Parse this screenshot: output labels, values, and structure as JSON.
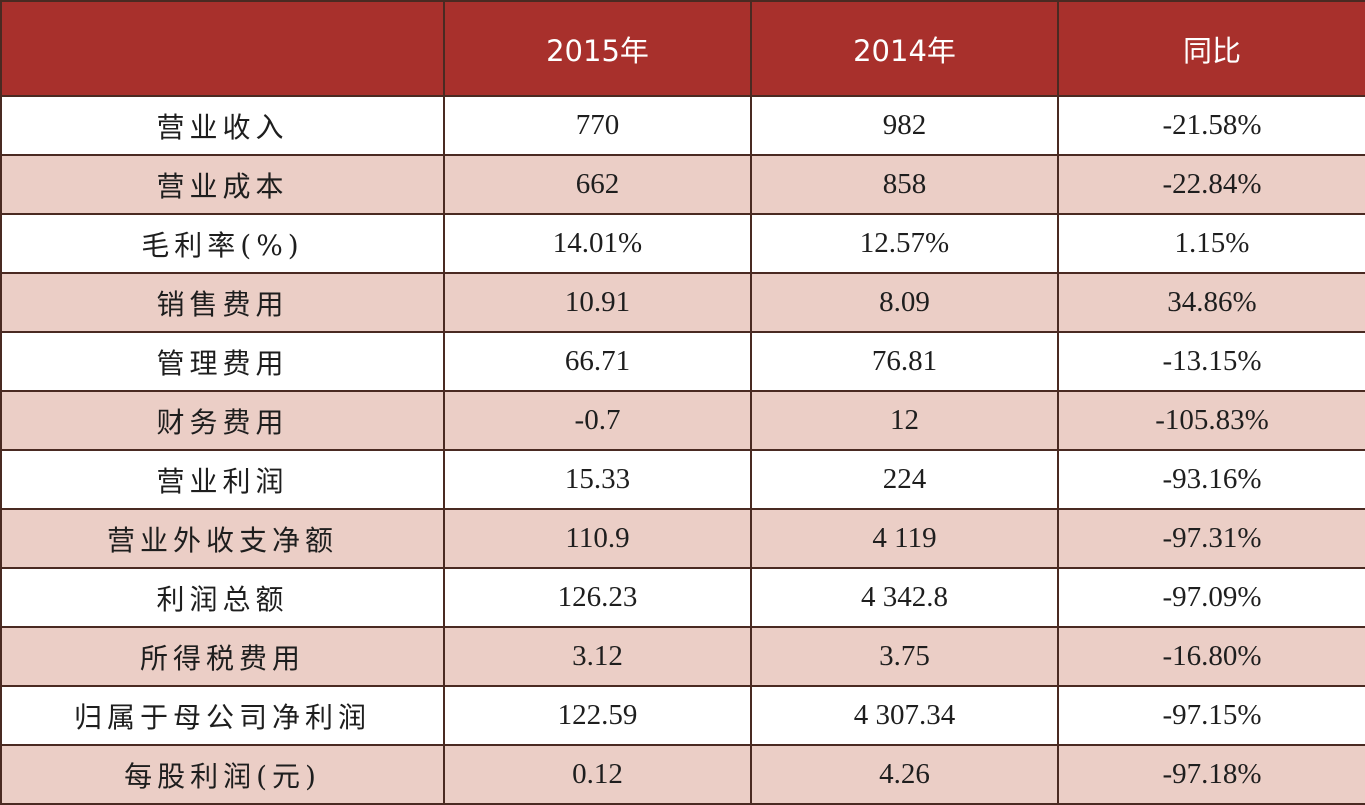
{
  "table": {
    "headers": [
      "",
      "2015年",
      "2014年",
      "同比"
    ],
    "rows": [
      {
        "label": "营业收入",
        "y2015": "770",
        "y2014": "982",
        "yoy": "-21.58%"
      },
      {
        "label": "营业成本",
        "y2015": "662",
        "y2014": "858",
        "yoy": "-22.84%"
      },
      {
        "label": "毛利率(%)",
        "y2015": "14.01%",
        "y2014": "12.57%",
        "yoy": "1.15%"
      },
      {
        "label": "销售费用",
        "y2015": "10.91",
        "y2014": "8.09",
        "yoy": "34.86%"
      },
      {
        "label": "管理费用",
        "y2015": "66.71",
        "y2014": "76.81",
        "yoy": "-13.15%"
      },
      {
        "label": "财务费用",
        "y2015": "-0.7",
        "y2014": "12",
        "yoy": "-105.83%"
      },
      {
        "label": "营业利润",
        "y2015": "15.33",
        "y2014": "224",
        "yoy": "-93.16%"
      },
      {
        "label": "营业外收支净额",
        "y2015": "110.9",
        "y2014": "4 119",
        "yoy": "-97.31%"
      },
      {
        "label": "利润总额",
        "y2015": "126.23",
        "y2014": "4 342.8",
        "yoy": "-97.09%"
      },
      {
        "label": "所得税费用",
        "y2015": "3.12",
        "y2014": "3.75",
        "yoy": "-16.80%"
      },
      {
        "label": "归属于母公司净利润",
        "y2015": "122.59",
        "y2014": "4 307.34",
        "yoy": "-97.15%"
      },
      {
        "label": "每股利润(元)",
        "y2015": "0.12",
        "y2014": "4.26",
        "yoy": "-97.18%"
      }
    ]
  },
  "colors": {
    "header_bg": "#a8302c",
    "header_text": "#ffffff",
    "row_alt_bg": "#ebcec6",
    "row_bg": "#ffffff",
    "border": "#4a2a22"
  }
}
